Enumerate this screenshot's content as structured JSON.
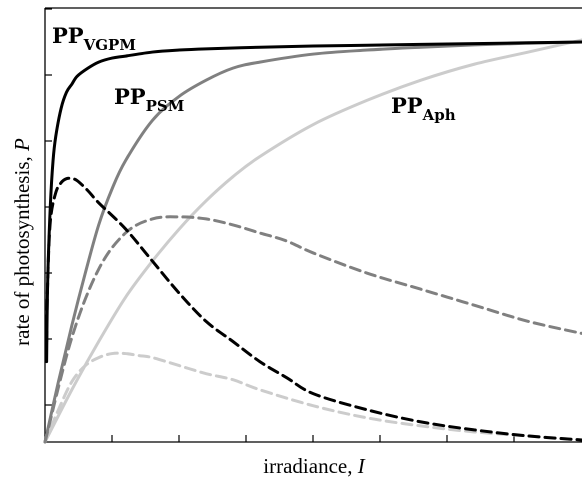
{
  "chart_data": {
    "type": "line",
    "xlabel": "irradiance, ",
    "xlabel_var": "I",
    "ylabel": "rate of photosynthesis, ",
    "ylabel_var": "P",
    "xlim": [
      0,
      10
    ],
    "ylim": [
      0,
      1.0
    ],
    "grid": false,
    "legend": "none",
    "series": [
      {
        "name": "VGPM",
        "style": "solid",
        "color": "#000000",
        "x": [
          0.03,
          0.05,
          0.1,
          0.15,
          0.2,
          0.3,
          0.4,
          0.5,
          0.6,
          0.8,
          1.0,
          1.25,
          1.5,
          2,
          2.5,
          3,
          4,
          5,
          6,
          7,
          8,
          9,
          10
        ],
        "y": [
          0.2,
          0.4,
          0.59,
          0.7,
          0.76,
          0.83,
          0.87,
          0.89,
          0.91,
          0.93,
          0.945,
          0.955,
          0.96,
          0.97,
          0.975,
          0.978,
          0.982,
          0.985,
          0.987,
          0.989,
          0.991,
          0.993,
          0.995
        ]
      },
      {
        "name": "PSM",
        "style": "solid",
        "color": "#808080",
        "x": [
          0,
          0.25,
          0.5,
          0.75,
          1.0,
          1.25,
          1.5,
          2,
          2.5,
          3,
          3.5,
          4,
          5,
          6,
          7,
          8,
          9,
          10
        ],
        "y": [
          0,
          0.15,
          0.29,
          0.42,
          0.54,
          0.63,
          0.7,
          0.8,
          0.86,
          0.9,
          0.93,
          0.945,
          0.965,
          0.975,
          0.982,
          0.988,
          0.992,
          0.995
        ]
      },
      {
        "name": "Aph",
        "style": "solid",
        "color": "#cccccc",
        "x": [
          0,
          0.5,
          1,
          1.5,
          2,
          2.5,
          3,
          3.5,
          4,
          5,
          6,
          7,
          8,
          9,
          10
        ],
        "y": [
          0,
          0.13,
          0.25,
          0.36,
          0.45,
          0.53,
          0.6,
          0.66,
          0.71,
          0.79,
          0.85,
          0.9,
          0.94,
          0.97,
          1.0
        ]
      },
      {
        "style": "dashed",
        "color": "#000000",
        "x": [
          0.03,
          0.05,
          0.1,
          0.2,
          0.3,
          0.4,
          0.5,
          0.6,
          0.8,
          1.0,
          1.5,
          2,
          2.5,
          3,
          3.5,
          4,
          4.5,
          5,
          6,
          7,
          8,
          9,
          10
        ],
        "y": [
          0.25,
          0.4,
          0.55,
          0.62,
          0.645,
          0.655,
          0.655,
          0.65,
          0.625,
          0.595,
          0.53,
          0.45,
          0.37,
          0.3,
          0.25,
          0.2,
          0.16,
          0.12,
          0.08,
          0.05,
          0.03,
          0.015,
          0.005
        ]
      },
      {
        "style": "dashed",
        "color": "#808080",
        "x": [
          0,
          0.5,
          1,
          1.5,
          2,
          2.5,
          3,
          3.5,
          4,
          4.5,
          5,
          6,
          7,
          8,
          9,
          10
        ],
        "y": [
          0,
          0.26,
          0.43,
          0.52,
          0.555,
          0.56,
          0.555,
          0.54,
          0.52,
          0.5,
          0.47,
          0.42,
          0.38,
          0.34,
          0.3,
          0.27
        ]
      },
      {
        "style": "dashed",
        "color": "#cccccc",
        "x": [
          0,
          0.25,
          0.5,
          0.75,
          1,
          1.25,
          1.5,
          1.75,
          2,
          2.5,
          3,
          3.5,
          4,
          5,
          6,
          7,
          8,
          9,
          10
        ],
        "y": [
          0,
          0.08,
          0.15,
          0.19,
          0.21,
          0.22,
          0.22,
          0.215,
          0.21,
          0.19,
          0.17,
          0.155,
          0.13,
          0.09,
          0.06,
          0.04,
          0.025,
          0.015,
          0.005
        ]
      }
    ],
    "labels": [
      {
        "main": "PP",
        "sub": "VGPM"
      },
      {
        "main": "PP",
        "sub": "PSM"
      },
      {
        "main": "PP",
        "sub": "Aph"
      }
    ]
  }
}
